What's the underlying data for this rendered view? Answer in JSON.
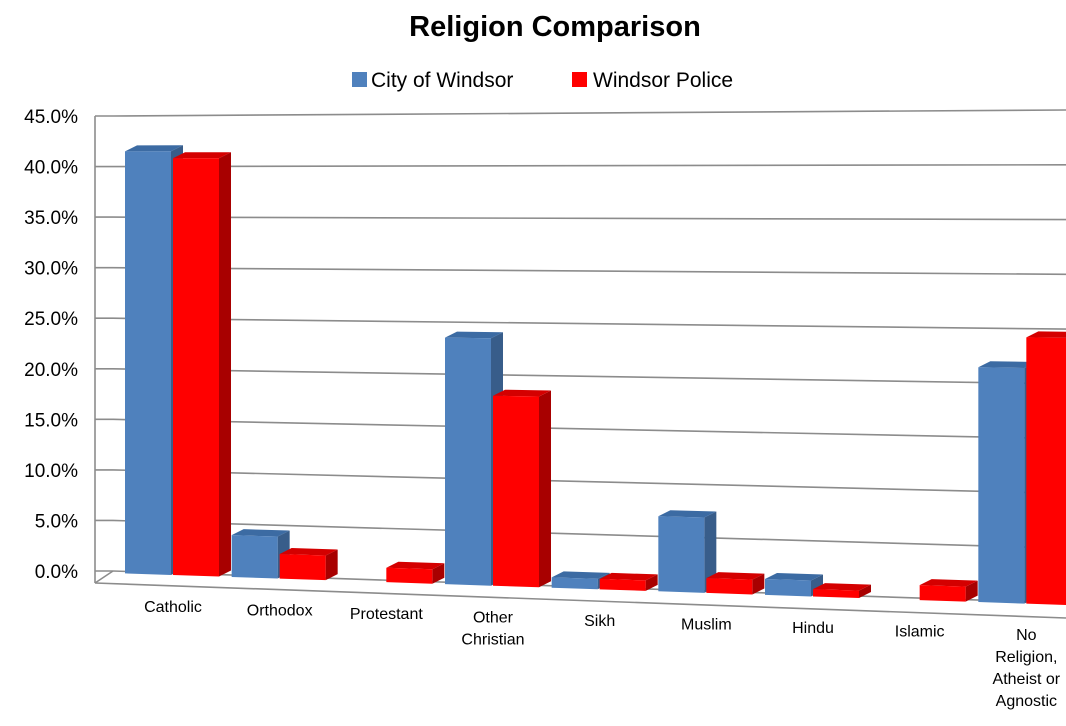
{
  "chart_data": {
    "type": "bar",
    "title": "Religion Comparison",
    "categories": [
      "Catholic",
      "Orthodox",
      "Protestant",
      "Other Christian",
      "Sikh",
      "Muslim",
      "Hindu",
      "Islamic",
      "No Religion, Atheist or Agnostic"
    ],
    "category_lines": [
      [
        "Catholic"
      ],
      [
        "Orthodox"
      ],
      [
        "Protestant"
      ],
      [
        "Other",
        "Christian"
      ],
      [
        "Sikh"
      ],
      [
        "Muslim"
      ],
      [
        "Hindu"
      ],
      [
        "Islamic"
      ],
      [
        "No",
        "Religion,",
        "Atheist or",
        "Agnostic"
      ]
    ],
    "series": [
      {
        "name": "City of Windsor",
        "values": [
          41.5,
          3.9,
          0,
          23.5,
          0.8,
          6.9,
          1.3,
          0,
          21.4
        ],
        "color": "#4f81bd",
        "top_color": "#3c6ba3",
        "side_color": "#385d8a"
      },
      {
        "name": "Windsor Police",
        "values": [
          40.8,
          2.2,
          1.2,
          18.0,
          0.8,
          1.2,
          0.5,
          1.2,
          24.2
        ],
        "color": "#ff0000",
        "top_color": "#d40000",
        "side_color": "#a80000"
      }
    ],
    "ylim": [
      0,
      45
    ],
    "yticks": [
      "0.0%",
      "5.0%",
      "10.0%",
      "15.0%",
      "20.0%",
      "25.0%",
      "30.0%",
      "35.0%",
      "40.0%",
      "45.0%"
    ],
    "xlabel": "",
    "ylabel": "",
    "legend_position": "top",
    "grid": true,
    "style": "3d-perspective"
  }
}
